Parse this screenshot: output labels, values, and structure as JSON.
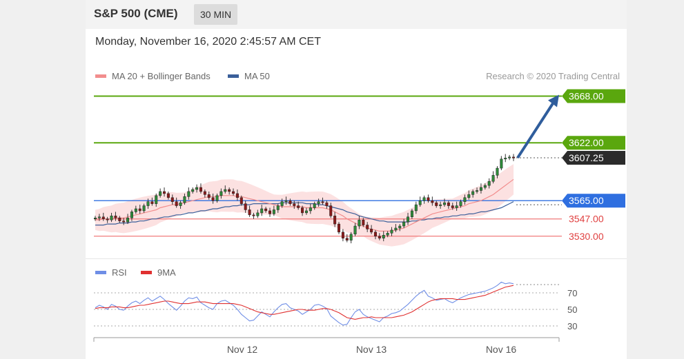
{
  "header": {
    "title": "S&P 500 (CME)",
    "timeframe": "30 MIN"
  },
  "datetime": "Monday, November 16, 2020 2:45:57 AM CET",
  "legend": {
    "ma20_label": "MA 20 + Bollinger Bands",
    "ma50_label": "MA 50",
    "credit": "Research © 2020 Trading Central"
  },
  "rsi_legend": {
    "rsi_label": "RSI",
    "ma_label": "9MA"
  },
  "colors": {
    "green_level": "#5aa70e",
    "blue_level": "#2f6fe0",
    "red_level": "#f07a7a",
    "price_tag": "#2b2b2b",
    "arrow": "#2f5d9c",
    "ma20": "#f28d8d",
    "ma50": "#3a5f9a",
    "bands": "#fcdcdc",
    "rsi": "#6f8ee6",
    "rsi_ma": "#e03030"
  },
  "chart_data": {
    "type": "candlestick",
    "levels": [
      {
        "value": 3668.0,
        "label": "3668.00",
        "kind": "resistance"
      },
      {
        "value": 3622.0,
        "label": "3622.00",
        "kind": "resistance"
      },
      {
        "value": 3607.25,
        "label": "3607.25",
        "kind": "last-price"
      },
      {
        "value": 3565.0,
        "label": "3565.00",
        "kind": "pivot"
      },
      {
        "value": 3547.0,
        "label": "3547.00",
        "kind": "support"
      },
      {
        "value": 3530.0,
        "label": "3530.00",
        "kind": "support"
      }
    ],
    "x_ticks": [
      "Nov 12",
      "Nov 13",
      "Nov 16"
    ],
    "rsi_ticks": [
      70,
      50,
      30
    ],
    "ylim": [
      3515,
      3675
    ],
    "arrow": {
      "from_value": 3607.25,
      "to_value": 3668.0
    },
    "close_series": [
      3548,
      3549,
      3547,
      3546,
      3550,
      3548,
      3545,
      3544,
      3548,
      3554,
      3557,
      3555,
      3560,
      3564,
      3562,
      3570,
      3574,
      3572,
      3568,
      3564,
      3560,
      3563,
      3569,
      3574,
      3576,
      3578,
      3574,
      3571,
      3568,
      3565,
      3570,
      3574,
      3576,
      3574,
      3572,
      3568,
      3562,
      3556,
      3551,
      3550,
      3553,
      3557,
      3555,
      3552,
      3556,
      3560,
      3564,
      3565,
      3562,
      3560,
      3558,
      3553,
      3555,
      3558,
      3562,
      3564,
      3563,
      3560,
      3550,
      3542,
      3534,
      3528,
      3526,
      3532,
      3540,
      3546,
      3541,
      3537,
      3534,
      3530,
      3528,
      3531,
      3533,
      3536,
      3538,
      3540,
      3544,
      3549,
      3555,
      3561,
      3565,
      3568,
      3565,
      3563,
      3560,
      3561,
      3563,
      3560,
      3558,
      3560,
      3564,
      3568,
      3571,
      3574,
      3575,
      3578,
      3580,
      3584,
      3590,
      3597,
      3606,
      3607,
      3608,
      3607
    ],
    "ma20_series": [
      3546,
      3546,
      3547,
      3547,
      3547,
      3548,
      3548,
      3548,
      3549,
      3550,
      3551,
      3552,
      3553,
      3554,
      3555,
      3556,
      3558,
      3559,
      3560,
      3561,
      3561,
      3562,
      3563,
      3564,
      3565,
      3566,
      3567,
      3568,
      3569,
      3569,
      3569,
      3570,
      3570,
      3570,
      3570,
      3569,
      3569,
      3568,
      3567,
      3566,
      3565,
      3564,
      3563,
      3562,
      3561,
      3560,
      3559,
      3559,
      3559,
      3559,
      3559,
      3559,
      3558,
      3558,
      3558,
      3558,
      3558,
      3557,
      3556,
      3554,
      3552,
      3550,
      3547,
      3545,
      3543,
      3541,
      3540,
      3538,
      3537,
      3536,
      3535,
      3535,
      3535,
      3535,
      3536,
      3537,
      3538,
      3540,
      3542,
      3544,
      3546,
      3548,
      3550,
      3552,
      3553,
      3554,
      3555,
      3556,
      3557,
      3558,
      3559,
      3560,
      3562,
      3563,
      3564,
      3565,
      3567,
      3569,
      3571,
      3574,
      3577,
      3580,
      3583,
      3586
    ],
    "ma50_series": [
      3541,
      3541,
      3541,
      3542,
      3542,
      3542,
      3543,
      3543,
      3543,
      3544,
      3544,
      3545,
      3545,
      3546,
      3547,
      3547,
      3548,
      3549,
      3549,
      3550,
      3551,
      3551,
      3552,
      3553,
      3553,
      3554,
      3555,
      3555,
      3556,
      3557,
      3557,
      3558,
      3559,
      3559,
      3560,
      3560,
      3561,
      3561,
      3561,
      3562,
      3562,
      3562,
      3562,
      3562,
      3562,
      3562,
      3563,
      3563,
      3563,
      3563,
      3563,
      3563,
      3562,
      3562,
      3562,
      3561,
      3561,
      3560,
      3559,
      3558,
      3557,
      3556,
      3554,
      3553,
      3552,
      3550,
      3549,
      3548,
      3547,
      3546,
      3545,
      3545,
      3544,
      3544,
      3544,
      3544,
      3544,
      3544,
      3545,
      3545,
      3546,
      3546,
      3547,
      3547,
      3548,
      3548,
      3549,
      3549,
      3550,
      3550,
      3551,
      3551,
      3552,
      3552,
      3553,
      3554,
      3554,
      3555,
      3556,
      3557,
      3558,
      3560,
      3562,
      3564
    ],
    "rsi_series": [
      52,
      55,
      53,
      50,
      56,
      54,
      50,
      49,
      54,
      58,
      60,
      57,
      61,
      64,
      60,
      63,
      66,
      62,
      57,
      53,
      49,
      54,
      60,
      64,
      63,
      65,
      58,
      55,
      52,
      50,
      57,
      60,
      61,
      58,
      55,
      50,
      44,
      40,
      36,
      37,
      42,
      47,
      44,
      41,
      47,
      52,
      56,
      57,
      52,
      50,
      48,
      44,
      47,
      50,
      55,
      56,
      54,
      51,
      42,
      38,
      34,
      31,
      32,
      40,
      47,
      50,
      44,
      41,
      39,
      37,
      35,
      40,
      42,
      45,
      46,
      48,
      52,
      56,
      61,
      66,
      70,
      73,
      66,
      64,
      61,
      62,
      63,
      60,
      58,
      61,
      64,
      66,
      68,
      69,
      70,
      71,
      72,
      74,
      76,
      79,
      83,
      81,
      82,
      81
    ],
    "rsi_ma_series": [
      51,
      52,
      52,
      52,
      53,
      53,
      53,
      52,
      52,
      53,
      54,
      55,
      55,
      56,
      57,
      58,
      59,
      60,
      60,
      59,
      58,
      57,
      57,
      57,
      58,
      59,
      59,
      59,
      58,
      57,
      57,
      57,
      57,
      57,
      57,
      56,
      55,
      53,
      51,
      49,
      47,
      46,
      45,
      44,
      44,
      45,
      46,
      47,
      48,
      49,
      50,
      50,
      49,
      49,
      49,
      50,
      51,
      51,
      50,
      48,
      46,
      43,
      40,
      39,
      38,
      39,
      40,
      40,
      41,
      40,
      40,
      40,
      40,
      40,
      41,
      42,
      43,
      45,
      47,
      50,
      53,
      56,
      59,
      61,
      62,
      63,
      63,
      63,
      63,
      62,
      62,
      62,
      63,
      64,
      65,
      66,
      67,
      69,
      71,
      73,
      75,
      77,
      78,
      79
    ]
  }
}
